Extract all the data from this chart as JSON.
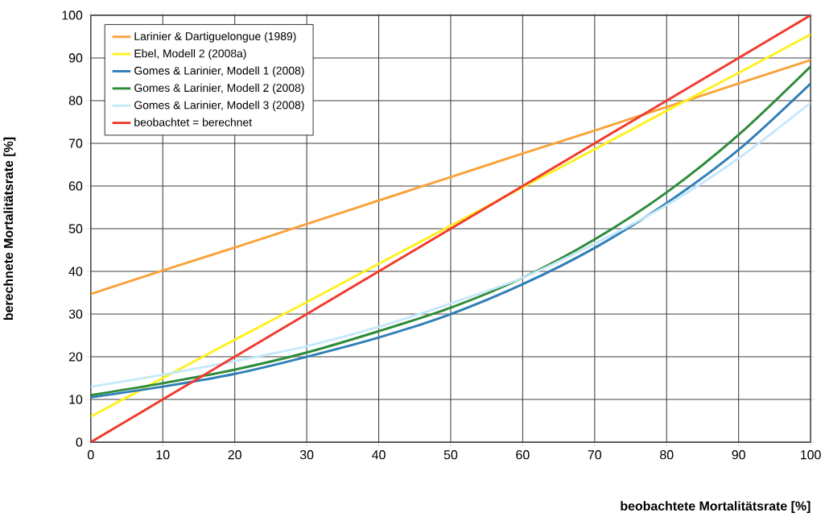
{
  "chart_data": {
    "type": "line",
    "xlabel": "beobachtete Mortalitätsrate [%]",
    "ylabel": "berechnete Mortalitätsrate [%]",
    "xlim": [
      0,
      100
    ],
    "ylim": [
      0,
      100
    ],
    "xticks": [
      0,
      10,
      20,
      30,
      40,
      50,
      60,
      70,
      80,
      90,
      100
    ],
    "yticks": [
      0,
      10,
      20,
      30,
      40,
      50,
      60,
      70,
      80,
      90,
      100
    ],
    "grid": true,
    "legend": "top left",
    "marker": "none",
    "line_style": "solid",
    "x": [
      0,
      10,
      20,
      30,
      40,
      50,
      60,
      70,
      80,
      90,
      100
    ],
    "series": [
      {
        "name": "Larinier & Dartiguelongue (1989)",
        "color": "#f9a33a",
        "values": [
          34.7,
          40.2,
          45.6,
          51.1,
          56.6,
          62.1,
          67.6,
          73.0,
          78.5,
          84.0,
          89.5
        ]
      },
      {
        "name": "Ebel, Modell 2 (2008a)",
        "color": "#fff01e",
        "values": [
          6,
          15,
          24,
          32.8,
          41.8,
          50.7,
          59.7,
          68.6,
          77.6,
          86.5,
          95.5
        ]
      },
      {
        "name": "Gomes & Larinier, Modell 1 (2008)",
        "color": "#2f7fb8",
        "values": [
          10.5,
          13,
          16,
          20,
          24.5,
          30,
          37,
          45.5,
          56,
          68.5,
          84
        ]
      },
      {
        "name": "Gomes & Larinier, Modell 2 (2008)",
        "color": "#2e8b3a",
        "values": [
          11,
          13.8,
          17,
          21,
          26,
          31.5,
          38.5,
          47.5,
          58.5,
          72,
          88
        ]
      },
      {
        "name": "Gomes & Larinier, Modell 3 (2008)",
        "color": "#c6e8fa",
        "values": [
          13,
          15.8,
          19,
          22.5,
          27,
          32.5,
          38.5,
          46.5,
          55.5,
          66.5,
          79.5
        ]
      },
      {
        "name": "beobachtet = berechnet",
        "color": "#f23a2e",
        "values": [
          0,
          10,
          20,
          30,
          40,
          50,
          60,
          70,
          80,
          90,
          100
        ]
      }
    ]
  }
}
